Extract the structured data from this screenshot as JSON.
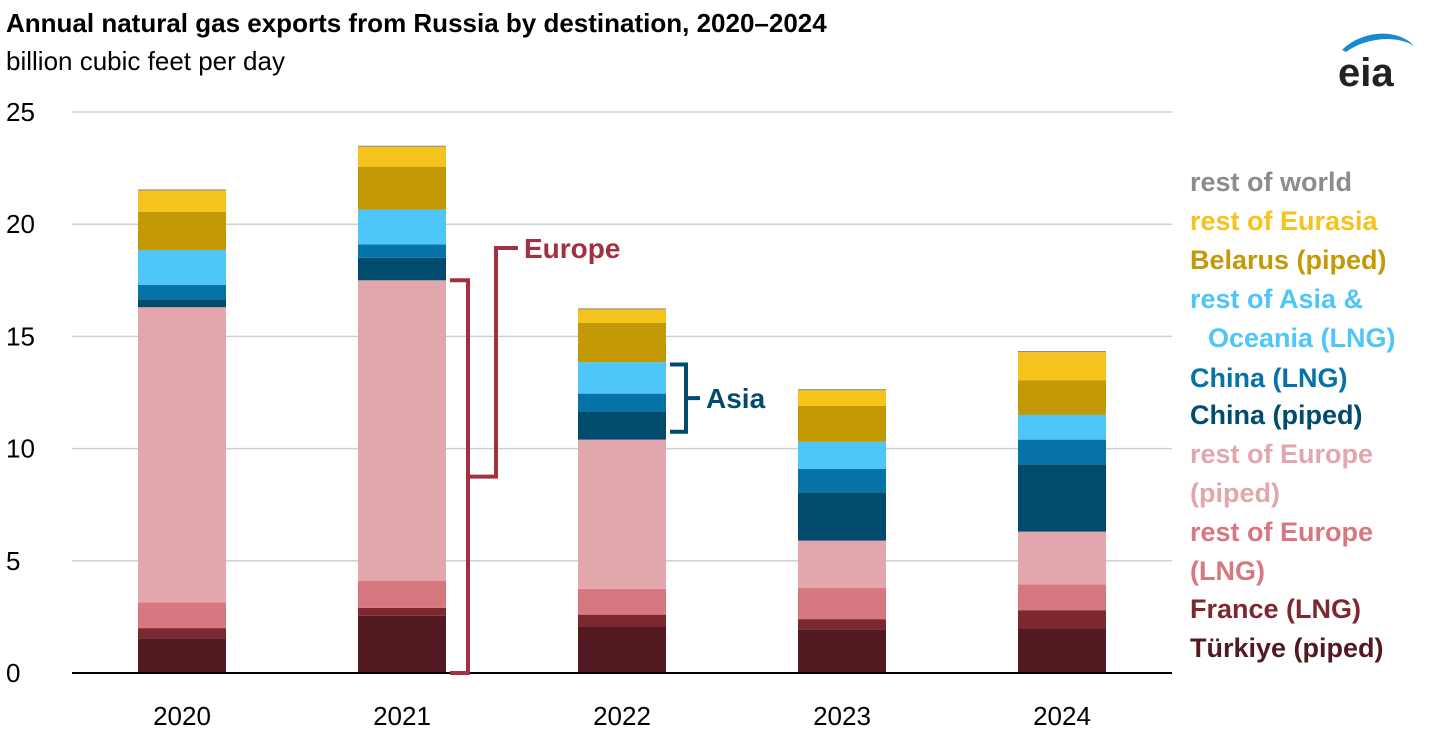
{
  "title": "Annual natural gas exports from Russia by destination, 2020–2024",
  "subtitle": "billion cubic feet per day",
  "logo_text": "eia",
  "chart_data": {
    "type": "bar",
    "stacked": true,
    "title": "Annual natural gas exports from Russia by destination, 2020–2024",
    "ylabel": "billion cubic feet per day",
    "xlabel": "",
    "ylim": [
      0,
      25
    ],
    "yticks": [
      "0",
      "5",
      "10",
      "15",
      "20",
      "25"
    ],
    "grid": true,
    "legend_position": "right",
    "categories": [
      "2020",
      "2021",
      "2022",
      "2023",
      "2024"
    ],
    "series": [
      {
        "name": "Türkiye (piped)",
        "color": "#521a20",
        "values": [
          1.55,
          2.55,
          2.05,
          1.95,
          2.0
        ]
      },
      {
        "name": "France (LNG)",
        "color": "#7d2830",
        "values": [
          0.45,
          0.35,
          0.55,
          0.45,
          0.8
        ]
      },
      {
        "name": "rest of Europe (LNG)",
        "color": "#d77880",
        "values": [
          1.15,
          1.2,
          1.15,
          1.4,
          1.15
        ]
      },
      {
        "name": "rest of Europe (piped)",
        "color": "#e2a7ad",
        "values": [
          13.15,
          13.4,
          6.65,
          2.1,
          2.35
        ]
      },
      {
        "name": "China (piped)",
        "color": "#014b6d",
        "values": [
          0.35,
          1.0,
          1.25,
          2.15,
          3.0
        ]
      },
      {
        "name": "China (LNG)",
        "color": "#0573a8",
        "values": [
          0.65,
          0.6,
          0.8,
          1.05,
          1.1
        ]
      },
      {
        "name": "rest of Asia & Oceania (LNG)",
        "color": "#4fc6f9",
        "values": [
          1.55,
          1.55,
          1.4,
          1.2,
          1.1
        ]
      },
      {
        "name": "Belarus (piped)",
        "color": "#c39a06",
        "values": [
          1.7,
          1.9,
          1.75,
          1.6,
          1.55
        ]
      },
      {
        "name": "rest of Eurasia",
        "color": "#f6c21c",
        "values": [
          0.95,
          0.9,
          0.6,
          0.7,
          1.25
        ]
      },
      {
        "name": "rest of world",
        "color": "#8c8c8c",
        "values": [
          0.05,
          0.05,
          0.05,
          0.05,
          0.05
        ]
      }
    ],
    "legend": [
      {
        "label": "rest of world",
        "color": "#8c8c8c"
      },
      {
        "label": "rest of Eurasia",
        "color": "#f6c21c"
      },
      {
        "label": "Belarus (piped)",
        "color": "#c39a06"
      },
      {
        "label": "rest of Asia &",
        "color": "#4fc6f9"
      },
      {
        "label": "Oceania (LNG)",
        "color": "#4fc6f9"
      },
      {
        "label": "China (LNG)",
        "color": "#0573a8"
      },
      {
        "label": "China (piped)",
        "color": "#014b6d"
      },
      {
        "label": "rest of Europe",
        "color": "#e2a7ad"
      },
      {
        "label": "(piped)",
        "color": "#e2a7ad"
      },
      {
        "label": "rest of Europe",
        "color": "#d77880"
      },
      {
        "label": "(LNG)",
        "color": "#d77880"
      },
      {
        "label": "France (LNG)",
        "color": "#7d2830"
      },
      {
        "label": "Türkiye (piped)",
        "color": "#521a20"
      }
    ],
    "annotations": [
      {
        "label": "Europe",
        "color": "#a33040",
        "category": "2021",
        "from": 0,
        "to": 17.5
      },
      {
        "label": "Asia",
        "color": "#014b6d",
        "category": "2022",
        "from": 10.75,
        "to": 13.75
      }
    ]
  }
}
